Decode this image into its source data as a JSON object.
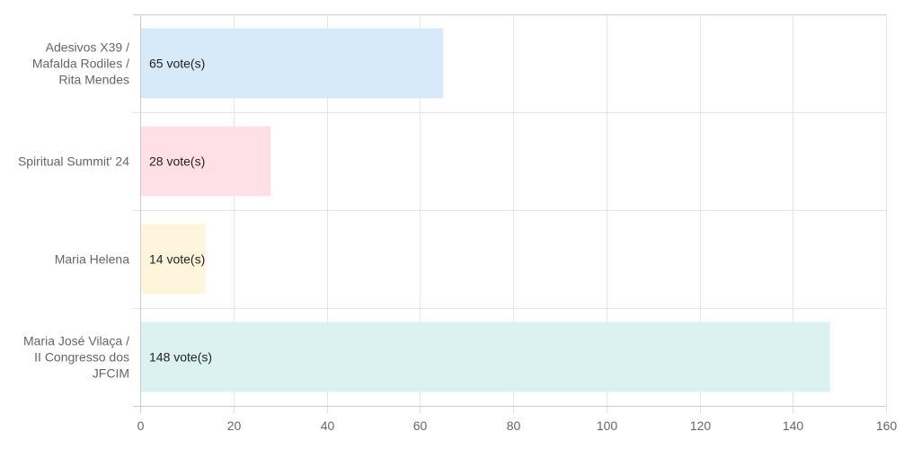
{
  "chart_data": {
    "type": "bar",
    "orientation": "horizontal",
    "categories": [
      [
        "Adesivos X39 /",
        "Mafalda Rodiles /",
        "Rita Mendes"
      ],
      [
        "Spiritual Summit' 24"
      ],
      [
        "Maria Helena"
      ],
      [
        "Maria José Vilaça /",
        "II Congresso dos",
        "JFCIM"
      ]
    ],
    "values": [
      65,
      28,
      14,
      148
    ],
    "data_labels": [
      "65 vote(s)",
      "28 vote(s)",
      "14 vote(s)",
      "148 vote(s)"
    ],
    "xlim": [
      0,
      160
    ],
    "xticks": [
      0,
      20,
      40,
      60,
      80,
      100,
      120,
      140,
      160
    ],
    "grid": true,
    "colors": {
      "fills": [
        "#d7eaf9",
        "#ffe0e6",
        "#fff4dc",
        "#dbf1f2"
      ],
      "grid": "#e5e5e5",
      "axis": "#cccccc"
    }
  }
}
